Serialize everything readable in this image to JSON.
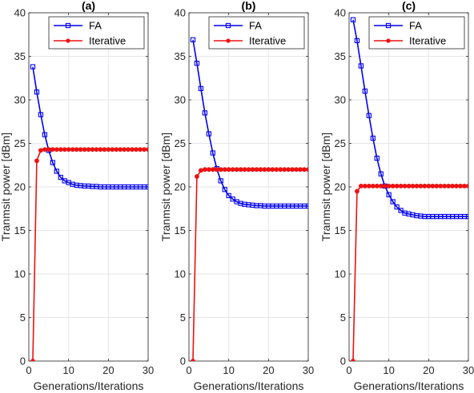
{
  "colors": {
    "fa": "#0000ee",
    "iterative": "#ee1111",
    "axis": "#262626",
    "grid": "#e6e6e6"
  },
  "chart_data": [
    {
      "type": "line",
      "title": "(a)",
      "xlabel": "Generations/Iterations",
      "ylabel": "Tranmsit power [dBm]",
      "xlim": [
        0,
        30
      ],
      "ylim": [
        0,
        40
      ],
      "xticks": [
        "0",
        "10",
        "20",
        "30"
      ],
      "yticks": [
        "0",
        "5",
        "10",
        "15",
        "20",
        "25",
        "30",
        "35",
        "40"
      ],
      "grid": true,
      "legend_position": "top-right",
      "series": [
        {
          "name": "FA",
          "marker": "square",
          "x": [
            1,
            2,
            3,
            4,
            5,
            6,
            7,
            8,
            9,
            10,
            11,
            12,
            13,
            14,
            15,
            16,
            17,
            18,
            19,
            20,
            21,
            22,
            23,
            24,
            25,
            26,
            27,
            28,
            29,
            30
          ],
          "y": [
            33.8,
            30.9,
            28.3,
            26.0,
            24.2,
            22.8,
            21.8,
            21.1,
            20.7,
            20.5,
            20.3,
            20.2,
            20.15,
            20.1,
            20.1,
            20.05,
            20.05,
            20.0,
            20.0,
            20.0,
            20.0,
            20.0,
            20.0,
            20.0,
            20.0,
            20.0,
            20.0,
            20.0,
            20.0,
            20.0
          ]
        },
        {
          "name": "Iterative",
          "marker": "circle",
          "x": [
            1,
            2,
            3,
            4,
            5,
            6,
            7,
            8,
            9,
            10,
            11,
            12,
            13,
            14,
            15,
            16,
            17,
            18,
            19,
            20,
            21,
            22,
            23,
            24,
            25,
            26,
            27,
            28,
            29,
            30
          ],
          "y": [
            0,
            23.0,
            24.2,
            24.3,
            24.3,
            24.3,
            24.3,
            24.3,
            24.3,
            24.3,
            24.3,
            24.3,
            24.3,
            24.3,
            24.3,
            24.3,
            24.3,
            24.3,
            24.3,
            24.3,
            24.3,
            24.3,
            24.3,
            24.3,
            24.3,
            24.3,
            24.3,
            24.3,
            24.3,
            24.3
          ]
        }
      ]
    },
    {
      "type": "line",
      "title": "(b)",
      "xlabel": "Generations/Iterations",
      "ylabel": "Tranmsit power [dBm]",
      "xlim": [
        0,
        30
      ],
      "ylim": [
        0,
        40
      ],
      "xticks": [
        "0",
        "10",
        "20",
        "30"
      ],
      "yticks": [
        "0",
        "5",
        "10",
        "15",
        "20",
        "25",
        "30",
        "35",
        "40"
      ],
      "grid": true,
      "legend_position": "top-right",
      "series": [
        {
          "name": "FA",
          "marker": "square",
          "x": [
            1,
            2,
            3,
            4,
            5,
            6,
            7,
            8,
            9,
            10,
            11,
            12,
            13,
            14,
            15,
            16,
            17,
            18,
            19,
            20,
            21,
            22,
            23,
            24,
            25,
            26,
            27,
            28,
            29,
            30
          ],
          "y": [
            36.9,
            34.2,
            31.3,
            28.5,
            26.1,
            23.9,
            22.1,
            20.7,
            19.7,
            19.0,
            18.6,
            18.3,
            18.1,
            18.0,
            17.95,
            17.9,
            17.85,
            17.85,
            17.8,
            17.8,
            17.8,
            17.8,
            17.8,
            17.8,
            17.8,
            17.8,
            17.8,
            17.8,
            17.8,
            17.8
          ]
        },
        {
          "name": "Iterative",
          "marker": "circle",
          "x": [
            1,
            2,
            3,
            4,
            5,
            6,
            7,
            8,
            9,
            10,
            11,
            12,
            13,
            14,
            15,
            16,
            17,
            18,
            19,
            20,
            21,
            22,
            23,
            24,
            25,
            26,
            27,
            28,
            29,
            30
          ],
          "y": [
            0,
            21.2,
            21.9,
            22.0,
            22.0,
            22.0,
            22.0,
            22.0,
            22.0,
            22.0,
            22.0,
            22.0,
            22.0,
            22.0,
            22.0,
            22.0,
            22.0,
            22.0,
            22.0,
            22.0,
            22.0,
            22.0,
            22.0,
            22.0,
            22.0,
            22.0,
            22.0,
            22.0,
            22.0,
            22.0
          ]
        }
      ]
    },
    {
      "type": "line",
      "title": "(c)",
      "xlabel": "Generations/Iterations",
      "ylabel": "Tranmsit power [dBm]",
      "xlim": [
        0,
        30
      ],
      "ylim": [
        0,
        40
      ],
      "xticks": [
        "0",
        "10",
        "20",
        "30"
      ],
      "yticks": [
        "0",
        "5",
        "10",
        "15",
        "20",
        "25",
        "30",
        "35",
        "40"
      ],
      "grid": true,
      "legend_position": "top-right",
      "series": [
        {
          "name": "FA",
          "marker": "square",
          "x": [
            1,
            2,
            3,
            4,
            5,
            6,
            7,
            8,
            9,
            10,
            11,
            12,
            13,
            14,
            15,
            16,
            17,
            18,
            19,
            20,
            21,
            22,
            23,
            24,
            25,
            26,
            27,
            28,
            29,
            30
          ],
          "y": [
            39.2,
            36.8,
            33.9,
            31.0,
            28.2,
            25.6,
            23.3,
            21.5,
            20.1,
            19.1,
            18.3,
            17.7,
            17.3,
            17.0,
            16.9,
            16.8,
            16.7,
            16.65,
            16.6,
            16.6,
            16.6,
            16.6,
            16.6,
            16.6,
            16.6,
            16.6,
            16.6,
            16.6,
            16.6,
            16.6
          ]
        },
        {
          "name": "Iterative",
          "marker": "circle",
          "x": [
            1,
            2,
            3,
            4,
            5,
            6,
            7,
            8,
            9,
            10,
            11,
            12,
            13,
            14,
            15,
            16,
            17,
            18,
            19,
            20,
            21,
            22,
            23,
            24,
            25,
            26,
            27,
            28,
            29,
            30
          ],
          "y": [
            0,
            19.5,
            20.1,
            20.1,
            20.1,
            20.1,
            20.1,
            20.1,
            20.1,
            20.1,
            20.1,
            20.1,
            20.1,
            20.1,
            20.1,
            20.1,
            20.1,
            20.1,
            20.1,
            20.1,
            20.1,
            20.1,
            20.1,
            20.1,
            20.1,
            20.1,
            20.1,
            20.1,
            20.1,
            20.1
          ]
        }
      ]
    }
  ]
}
